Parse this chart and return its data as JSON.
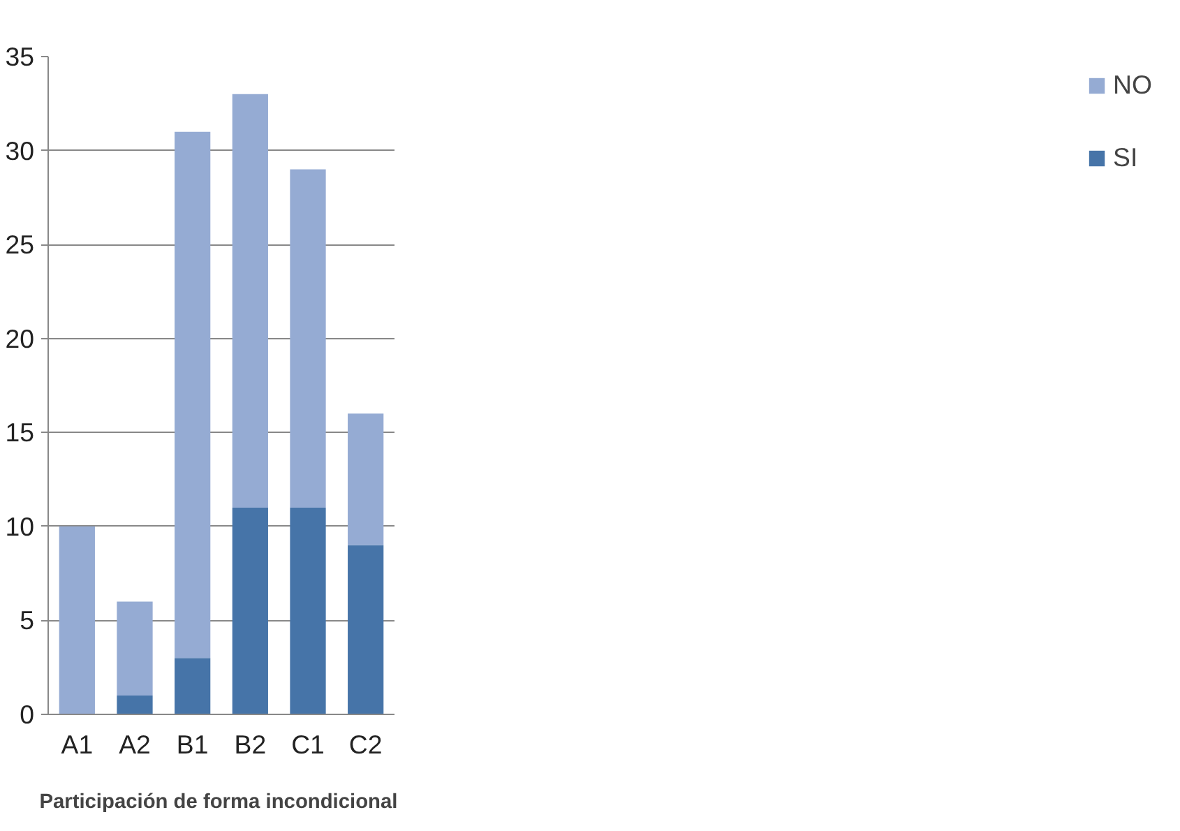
{
  "chart_data": {
    "type": "bar",
    "stacked": true,
    "xlabel": "Participación de  forma incondicional",
    "categories": [
      "A1",
      "A2",
      "B1",
      "B2",
      "C1",
      "C2"
    ],
    "series": [
      {
        "name": "SI",
        "color": "#4674a8",
        "values": [
          0,
          1,
          3,
          11,
          11,
          9
        ]
      },
      {
        "name": "NO",
        "color": "#95abd3",
        "values": [
          10,
          5,
          28,
          22,
          18,
          7
        ]
      }
    ],
    "ylim": [
      0,
      35
    ],
    "yticks": [
      0,
      5,
      10,
      15,
      20,
      25,
      30,
      35
    ],
    "grid": "y",
    "legend": "right"
  }
}
